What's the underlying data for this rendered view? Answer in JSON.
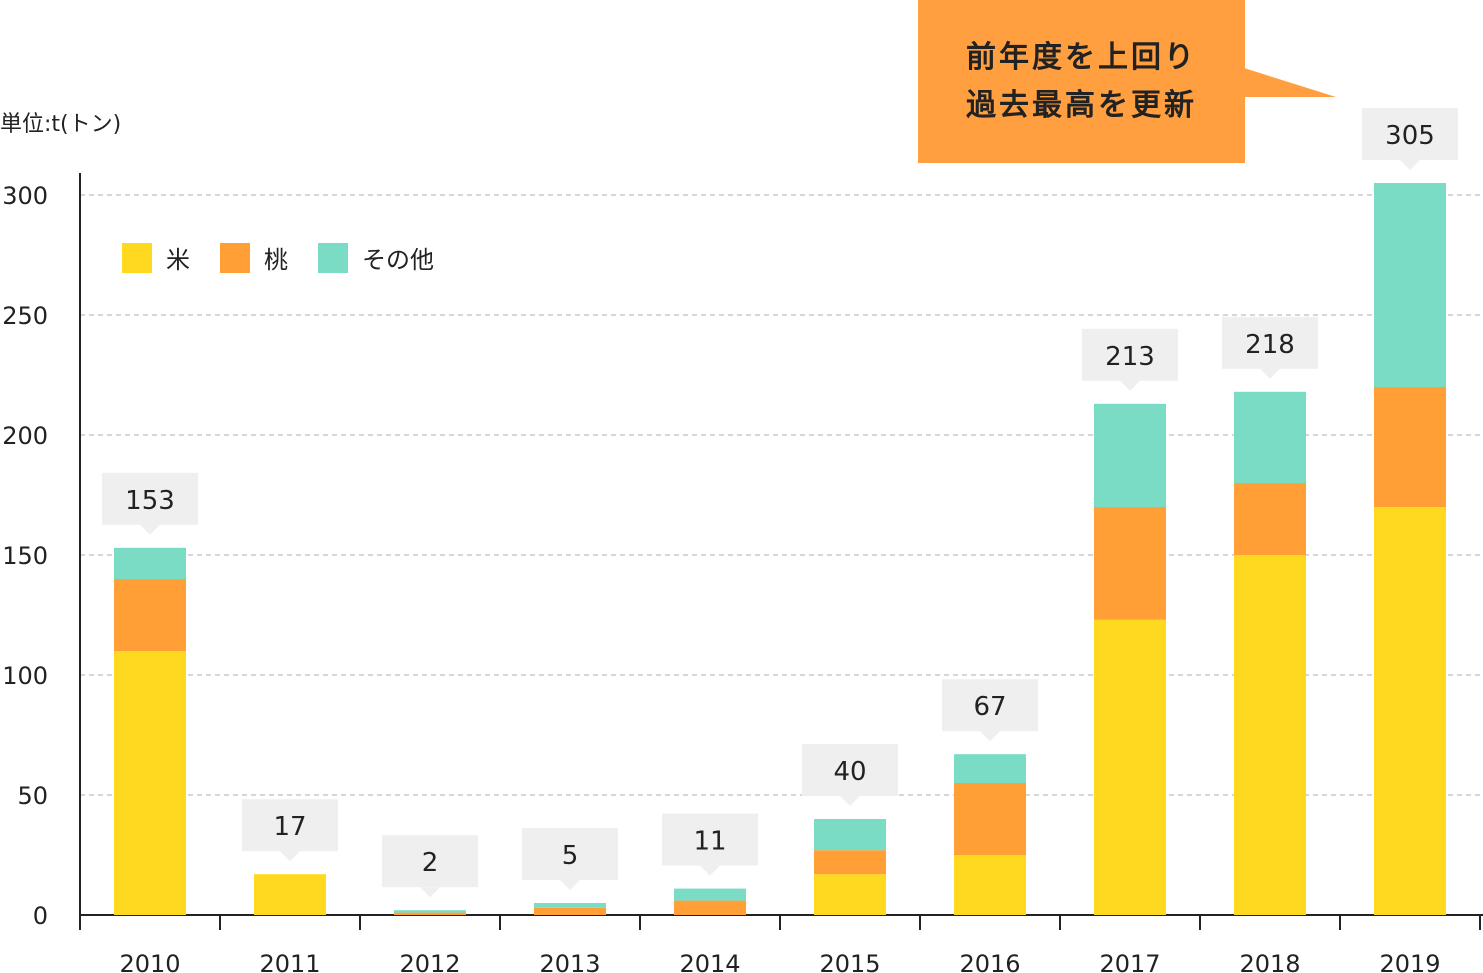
{
  "chart_data": {
    "type": "bar",
    "stacked": true,
    "unit_label": "単位:t(トン)",
    "categories": [
      "2010",
      "2011",
      "2012",
      "2013",
      "2014",
      "2015",
      "2016",
      "2017",
      "2018",
      "2019"
    ],
    "series": [
      {
        "name": "米",
        "color": "#ffd820",
        "values": [
          110,
          17,
          0,
          0,
          0,
          17,
          25,
          123,
          150,
          170
        ]
      },
      {
        "name": "桃",
        "color": "#ff9f35",
        "values": [
          30,
          0,
          1,
          3,
          6,
          10,
          30,
          47,
          30,
          50
        ]
      },
      {
        "name": "その他",
        "color": "#7adcc4",
        "values": [
          13,
          0,
          1,
          2,
          5,
          13,
          12,
          43,
          38,
          85
        ]
      }
    ],
    "totals": [
      153,
      17,
      2,
      5,
      11,
      40,
      67,
      213,
      218,
      305
    ],
    "ylim": [
      0,
      300
    ],
    "yticks": [
      0,
      50,
      100,
      150,
      200,
      250,
      300
    ],
    "grid": true,
    "legend_position": "top-left",
    "annotation": {
      "lines": [
        "前年度を上回り",
        "過去最高を更新"
      ],
      "color": "#ff9f40"
    }
  }
}
